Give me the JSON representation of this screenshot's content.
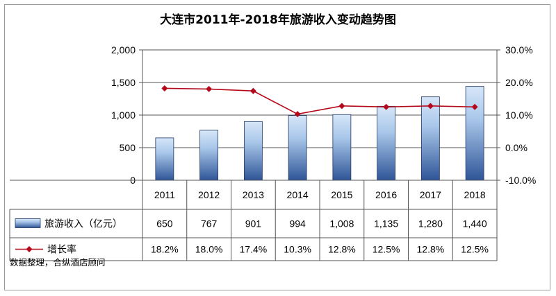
{
  "chart_data": {
    "type": "bar",
    "title": "大连市2011年-2018年旅游收入变动趋势图",
    "categories": [
      "2011",
      "2012",
      "2013",
      "2014",
      "2015",
      "2016",
      "2017",
      "2018"
    ],
    "series": [
      {
        "name": "旅游收入（亿元）",
        "type": "bar",
        "axis": "left",
        "values": [
          650,
          767,
          901,
          994,
          1008,
          1135,
          1280,
          1440
        ],
        "labels": [
          "650",
          "767",
          "901",
          "994",
          "1,008",
          "1,135",
          "1,280",
          "1,440"
        ]
      },
      {
        "name": "增长率",
        "type": "line",
        "axis": "right",
        "values": [
          18.2,
          18.0,
          17.4,
          10.3,
          12.8,
          12.5,
          12.8,
          12.5
        ],
        "labels": [
          "18.2%",
          "18.0%",
          "17.4%",
          "10.3%",
          "12.8%",
          "12.5%",
          "12.8%",
          "12.5%"
        ]
      }
    ],
    "y_left": {
      "ylim": [
        0,
        2000
      ],
      "ticks": [
        0,
        500,
        1000,
        1500,
        2000
      ],
      "tick_labels": [
        "0",
        "500",
        "1,000",
        "1,500",
        "2,000"
      ]
    },
    "y_right": {
      "ylim": [
        -10,
        30
      ],
      "ticks": [
        -10,
        0,
        10,
        20,
        30
      ],
      "tick_labels": [
        "-10.0%",
        "0.0%",
        "10.0%",
        "20.0%",
        "30.0%"
      ]
    },
    "grid": true,
    "data_table": true,
    "source_note": "数据整理，合纵酒店顾问",
    "colors": {
      "bar_top": "#d6e6f8",
      "bar_bottom": "#2f5597",
      "line": "#b4091b",
      "grid": "#555555"
    }
  }
}
